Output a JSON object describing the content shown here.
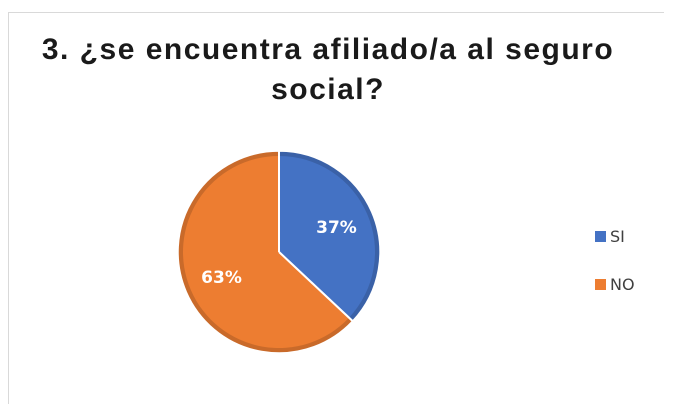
{
  "chart_data": {
    "type": "pie",
    "title": "3. ¿se encuentra afiliado/a al seguro social?",
    "categories": [
      "SI",
      "NO"
    ],
    "values": [
      37,
      63
    ],
    "data_labels": [
      "37%",
      "63%"
    ],
    "colors": [
      "#4472c4",
      "#ed7d31"
    ],
    "legend_position": "right"
  }
}
